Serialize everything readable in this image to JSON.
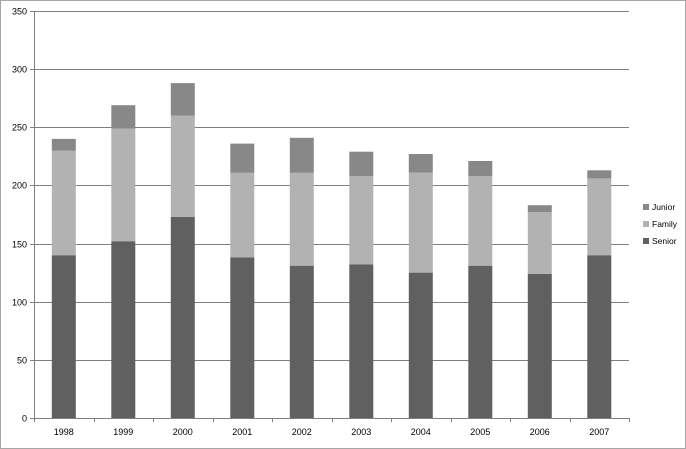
{
  "chart_data": {
    "type": "bar",
    "stacked": true,
    "categories": [
      "1998",
      "1999",
      "2000",
      "2001",
      "2002",
      "2003",
      "2004",
      "2005",
      "2006",
      "2007"
    ],
    "series": [
      {
        "name": "Senior",
        "color": "#606060",
        "values": [
          140,
          152,
          173,
          138,
          131,
          132,
          125,
          131,
          124,
          140
        ]
      },
      {
        "name": "Family",
        "color": "#b2b2b2",
        "values": [
          90,
          97,
          87,
          73,
          80,
          76,
          86,
          77,
          53,
          66
        ]
      },
      {
        "name": "Junior",
        "color": "#888888",
        "values": [
          10,
          20,
          28,
          25,
          30,
          21,
          16,
          13,
          6,
          7
        ]
      }
    ],
    "title": "",
    "xlabel": "",
    "ylabel": "",
    "ylim": [
      0,
      350
    ],
    "yticks": [
      0,
      50,
      100,
      150,
      200,
      250,
      300,
      350
    ],
    "grid": true,
    "legend_position": "right"
  }
}
